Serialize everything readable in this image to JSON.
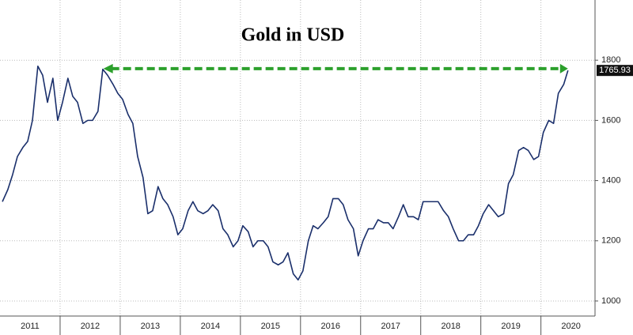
{
  "chart_data": {
    "type": "line",
    "title": "Gold in USD",
    "x": [
      2011.04,
      2011.13,
      2011.21,
      2011.29,
      2011.38,
      2011.46,
      2011.54,
      2011.63,
      2011.71,
      2011.79,
      2011.88,
      2011.96,
      2012.04,
      2012.13,
      2012.21,
      2012.29,
      2012.38,
      2012.46,
      2012.54,
      2012.63,
      2012.71,
      2012.79,
      2012.88,
      2012.96,
      2013.04,
      2013.13,
      2013.21,
      2013.29,
      2013.38,
      2013.46,
      2013.54,
      2013.63,
      2013.71,
      2013.79,
      2013.88,
      2013.96,
      2014.04,
      2014.13,
      2014.21,
      2014.29,
      2014.38,
      2014.46,
      2014.54,
      2014.63,
      2014.71,
      2014.79,
      2014.88,
      2014.96,
      2015.04,
      2015.13,
      2015.21,
      2015.29,
      2015.38,
      2015.46,
      2015.54,
      2015.63,
      2015.71,
      2015.79,
      2015.88,
      2015.96,
      2016.04,
      2016.13,
      2016.21,
      2016.29,
      2016.38,
      2016.46,
      2016.54,
      2016.63,
      2016.71,
      2016.79,
      2016.88,
      2016.96,
      2017.04,
      2017.13,
      2017.21,
      2017.29,
      2017.38,
      2017.46,
      2017.54,
      2017.63,
      2017.71,
      2017.79,
      2017.88,
      2017.96,
      2018.04,
      2018.13,
      2018.21,
      2018.29,
      2018.38,
      2018.46,
      2018.54,
      2018.63,
      2018.71,
      2018.79,
      2018.88,
      2018.96,
      2019.04,
      2019.13,
      2019.21,
      2019.29,
      2019.38,
      2019.46,
      2019.54,
      2019.63,
      2019.71,
      2019.79,
      2019.88,
      2019.96,
      2020.04,
      2020.13,
      2020.21,
      2020.29,
      2020.38,
      2020.45
    ],
    "series": [
      {
        "color": "#1a2f6b",
        "values": [
          1330,
          1370,
          1420,
          1480,
          1510,
          1530,
          1600,
          1780,
          1750,
          1660,
          1740,
          1600,
          1660,
          1740,
          1680,
          1660,
          1590,
          1600,
          1600,
          1630,
          1770,
          1750,
          1720,
          1690,
          1670,
          1620,
          1590,
          1480,
          1410,
          1290,
          1300,
          1380,
          1340,
          1320,
          1280,
          1220,
          1240,
          1300,
          1330,
          1300,
          1290,
          1300,
          1320,
          1300,
          1240,
          1220,
          1180,
          1200,
          1250,
          1230,
          1180,
          1200,
          1200,
          1180,
          1130,
          1120,
          1130,
          1160,
          1090,
          1070,
          1100,
          1200,
          1250,
          1240,
          1260,
          1280,
          1340,
          1340,
          1320,
          1270,
          1240,
          1150,
          1200,
          1240,
          1240,
          1270,
          1260,
          1260,
          1240,
          1280,
          1320,
          1280,
          1280,
          1270,
          1330,
          1330,
          1330,
          1330,
          1300,
          1280,
          1240,
          1200,
          1200,
          1220,
          1220,
          1250,
          1290,
          1320,
          1300,
          1280,
          1290,
          1390,
          1420,
          1500,
          1510,
          1500,
          1470,
          1480,
          1560,
          1600,
          1590,
          1690,
          1720,
          1765.93
        ]
      }
    ],
    "arrow": {
      "y": 1772,
      "x": [
        2012.72,
        2020.45
      ],
      "color": "#2ca02c"
    },
    "xlim": [
      2011.0,
      2020.9
    ],
    "ylim": [
      950,
      2000
    ],
    "xticks": [
      {
        "value": 2011.5,
        "label": "2011"
      },
      {
        "value": 2012.5,
        "label": "2012"
      },
      {
        "value": 2013.5,
        "label": "2013"
      },
      {
        "value": 2014.5,
        "label": "2014"
      },
      {
        "value": 2015.5,
        "label": "2015"
      },
      {
        "value": 2016.5,
        "label": "2016"
      },
      {
        "value": 2017.5,
        "label": "2017"
      },
      {
        "value": 2018.5,
        "label": "2018"
      },
      {
        "value": 2019.5,
        "label": "2019"
      },
      {
        "value": 2020.5,
        "label": "2020"
      }
    ],
    "xgrid": [
      2012,
      2013,
      2014,
      2015,
      2016,
      2017,
      2018,
      2019,
      2020
    ],
    "yticks": [
      1000,
      1200,
      1400,
      1600,
      1800
    ],
    "grid": true
  }
}
